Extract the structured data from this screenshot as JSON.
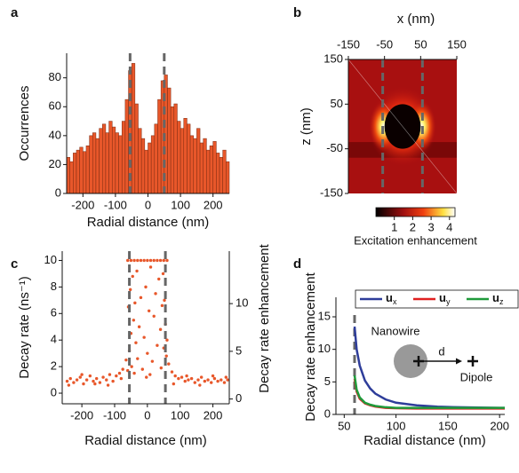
{
  "chart_data": [
    {
      "type": "histogram",
      "panel": "a",
      "xlabel": "Radial distance (nm)",
      "ylabel": "Occurrences",
      "color": "#e8572a",
      "bins": [
        -250,
        -240,
        -230,
        -220,
        -210,
        -200,
        -190,
        -180,
        -170,
        -160,
        -150,
        -140,
        -130,
        -120,
        -110,
        -100,
        -90,
        -80,
        -70,
        -60,
        -50,
        -40,
        -30,
        -20,
        -10,
        0,
        10,
        20,
        30,
        40,
        50,
        60,
        70,
        80,
        90,
        100,
        110,
        120,
        130,
        140,
        150,
        160,
        170,
        180,
        190,
        200,
        210,
        220,
        230,
        240,
        250
      ],
      "values": [
        25,
        22,
        28,
        30,
        32,
        29,
        33,
        40,
        42,
        38,
        45,
        48,
        42,
        50,
        46,
        42,
        40,
        50,
        65,
        85,
        90,
        62,
        45,
        38,
        30,
        35,
        40,
        48,
        65,
        78,
        82,
        73,
        60,
        62,
        50,
        45,
        52,
        48,
        40,
        38,
        45,
        35,
        38,
        30,
        33,
        36,
        28,
        25,
        30,
        22
      ],
      "xlim": [
        -250,
        250
      ],
      "ylim": [
        0,
        97
      ],
      "xticks": [
        -200,
        -100,
        0,
        100,
        200
      ],
      "yticks": [
        0,
        20,
        40,
        60,
        80
      ],
      "dashed_x": [
        -55,
        50
      ]
    },
    {
      "type": "heatmap",
      "panel": "b",
      "xlabel": "x (nm)",
      "ylabel": "z (nm)",
      "xlim": [
        -150,
        150
      ],
      "ylim": [
        -150,
        150
      ],
      "xticks": [
        -150,
        -50,
        50,
        150
      ],
      "yticks": [
        150,
        50,
        -50,
        -150
      ],
      "dashed_x": [
        -55,
        55
      ],
      "colorbar": {
        "label": "Excitation enhancement",
        "lim": [
          0,
          4.3
        ],
        "ticks": [
          1,
          2,
          3,
          4
        ]
      }
    },
    {
      "type": "scatter",
      "panel": "c",
      "xlabel": "Radial distance (nm)",
      "ylabel": "Decay rate (ns⁻¹)",
      "y2label": "Decay rate enhancement",
      "color": "#e8572a",
      "x": [
        -245,
        -235,
        -225,
        -215,
        -205,
        -195,
        -185,
        -175,
        -165,
        -155,
        -145,
        -135,
        -125,
        -115,
        -105,
        -95,
        -85,
        -75,
        -65,
        65,
        75,
        85,
        95,
        105,
        115,
        125,
        135,
        145,
        155,
        165,
        175,
        185,
        195,
        205,
        215,
        225,
        235,
        245,
        -240,
        -200,
        -160,
        -120,
        -80,
        80,
        120,
        160,
        200,
        240,
        -58,
        -55,
        -52,
        -50,
        -48,
        -45,
        -42,
        -40,
        -38,
        -35,
        -32,
        -30,
        -25,
        -20,
        -15,
        -10,
        -5,
        0,
        5,
        10,
        15,
        20,
        25,
        30,
        35,
        40,
        42,
        45,
        48,
        50,
        52,
        55,
        58,
        -60,
        60,
        -3,
        8,
        -60,
        -50,
        -40,
        -30,
        -20,
        -10,
        0,
        10,
        20,
        30,
        40,
        50,
        60
      ],
      "y": [
        0.9,
        1.1,
        0.8,
        1.0,
        1.2,
        0.7,
        1.0,
        1.3,
        0.9,
        1.1,
        0.8,
        1.2,
        1.0,
        1.4,
        0.9,
        1.3,
        1.5,
        1.8,
        2.5,
        2.2,
        1.6,
        1.3,
        1.1,
        1.2,
        0.9,
        1.0,
        1.1,
        0.8,
        1.0,
        1.2,
        0.9,
        1.0,
        0.8,
        1.1,
        0.9,
        1.0,
        0.8,
        1.0,
        0.6,
        1.4,
        0.7,
        0.6,
        1.1,
        0.7,
        1.3,
        0.6,
        1.3,
        1.2,
        6.5,
        3.2,
        7.8,
        4.5,
        2.0,
        8.8,
        5.5,
        1.5,
        6.8,
        3.8,
        9.2,
        2.6,
        5.0,
        7.2,
        1.8,
        4.2,
        8.0,
        3.0,
        6.2,
        9.5,
        2.4,
        5.8,
        7.5,
        3.6,
        8.6,
        4.8,
        1.9,
        6.6,
        9.0,
        3.4,
        7.0,
        5.2,
        2.8,
        1.7,
        4.0,
        1.2,
        1.4,
        10,
        10,
        10,
        10,
        10,
        10,
        10,
        10,
        10,
        10,
        10,
        10,
        10
      ],
      "xlim": [
        -260,
        250
      ],
      "ylim": [
        -0.8,
        10.7
      ],
      "y2lim": [
        -0.5,
        15.5
      ],
      "xticks": [
        -200,
        -100,
        0,
        100,
        200
      ],
      "yticks": [
        0,
        2,
        4,
        6,
        8,
        10
      ],
      "y2ticks": [
        0,
        5,
        10
      ],
      "dashed_x": [
        -55,
        55
      ]
    },
    {
      "type": "line",
      "panel": "d",
      "xlabel": "Radial distance (nm)",
      "ylabel": "Decay rate enhancement",
      "x": [
        60,
        62,
        65,
        70,
        75,
        80,
        90,
        100,
        120,
        140,
        160,
        180,
        200,
        205
      ],
      "series": [
        {
          "name": "ux",
          "color": "#2e3d9a",
          "values": [
            13.5,
            10,
            7.5,
            5.2,
            4,
            3.2,
            2.3,
            1.8,
            1.4,
            1.2,
            1.1,
            1.05,
            1.0,
            1.0
          ]
        },
        {
          "name": "uy",
          "color": "#e02020",
          "values": [
            5.5,
            3.5,
            2.4,
            1.7,
            1.4,
            1.2,
            1.0,
            0.95,
            0.9,
            0.9,
            0.9,
            0.9,
            0.9,
            0.9
          ]
        },
        {
          "name": "uz",
          "color": "#1f9a3a",
          "values": [
            6,
            3.8,
            2.6,
            1.8,
            1.5,
            1.3,
            1.1,
            1.0,
            1.0,
            1.0,
            1.0,
            1.0,
            1.0,
            1.0
          ]
        }
      ],
      "xlim": [
        42,
        205
      ],
      "ylim": [
        0,
        18
      ],
      "xticks": [
        50,
        100,
        150,
        200
      ],
      "yticks": [
        0,
        5,
        10,
        15
      ],
      "dashed_x": [
        60
      ],
      "legend": "top",
      "annotations": {
        "nanowire": "Nanowire",
        "d": "d",
        "dipole": "Dipole"
      }
    }
  ]
}
